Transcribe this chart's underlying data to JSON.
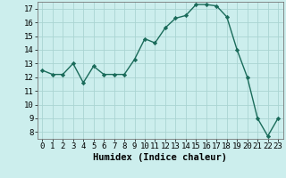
{
  "x": [
    0,
    1,
    2,
    3,
    4,
    5,
    6,
    7,
    8,
    9,
    10,
    11,
    12,
    13,
    14,
    15,
    16,
    17,
    18,
    19,
    20,
    21,
    22,
    23
  ],
  "y": [
    12.5,
    12.2,
    12.2,
    13.0,
    11.6,
    12.8,
    12.2,
    12.2,
    12.2,
    13.3,
    14.8,
    14.5,
    15.6,
    16.3,
    16.5,
    17.3,
    17.3,
    17.2,
    16.4,
    14.0,
    12.0,
    9.0,
    7.7,
    9.0
  ],
  "line_color": "#1a6b5a",
  "marker": "D",
  "marker_size": 2.2,
  "bg_color": "#cceeed",
  "grid_color": "#aad4d2",
  "xlabel": "Humidex (Indice chaleur)",
  "xlim": [
    -0.5,
    23.5
  ],
  "ylim": [
    7.5,
    17.5
  ],
  "yticks": [
    8,
    9,
    10,
    11,
    12,
    13,
    14,
    15,
    16,
    17
  ],
  "xtick_labels": [
    "0",
    "1",
    "2",
    "3",
    "4",
    "5",
    "6",
    "7",
    "8",
    "9",
    "10",
    "11",
    "12",
    "13",
    "14",
    "15",
    "16",
    "17",
    "18",
    "19",
    "20",
    "21",
    "22",
    "23"
  ],
  "xlabel_fontsize": 7.5,
  "tick_fontsize": 6.5,
  "line_width": 1.0
}
